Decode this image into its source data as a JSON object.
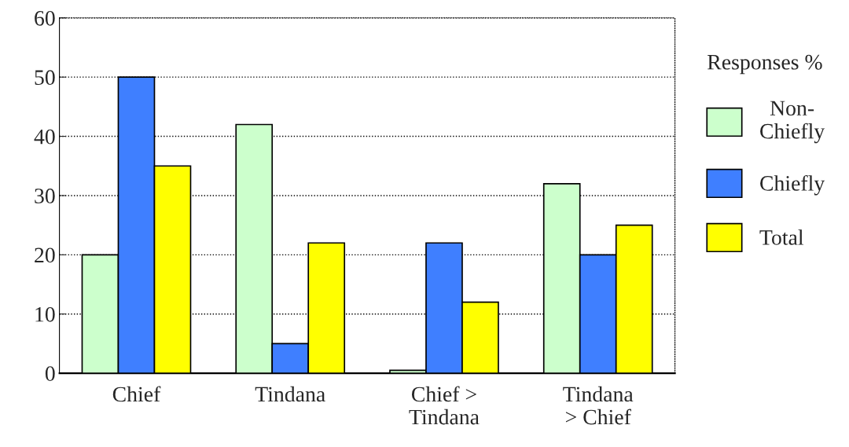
{
  "chart_data": {
    "type": "bar",
    "categories": [
      "Chief",
      "Tindana",
      "Chief >\nTindana",
      "Tindana\n> Chief"
    ],
    "series": [
      {
        "name": "Non-\nChiefly",
        "color": "#ccffcc",
        "values": [
          20,
          42,
          0.5,
          32
        ]
      },
      {
        "name": "Chiefly",
        "color": "#3f7fff",
        "values": [
          50,
          5,
          22,
          20
        ]
      },
      {
        "name": "Total",
        "color": "#ffff00",
        "values": [
          35,
          22,
          12,
          25
        ]
      }
    ],
    "legend_title": "Responses %",
    "ylim": [
      0,
      60
    ],
    "yticks": [
      0,
      10,
      20,
      30,
      40,
      50,
      60
    ],
    "grid": "y",
    "legend": "right"
  }
}
